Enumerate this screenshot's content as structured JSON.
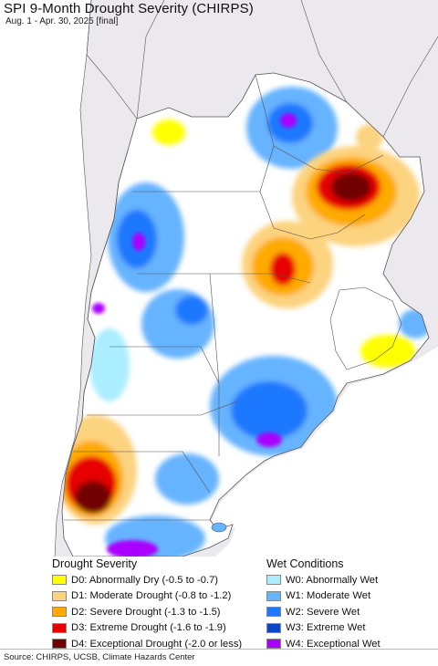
{
  "header": {
    "title": "SPI 9-Month Drought Severity (CHIRPS)",
    "subtitle": "Aug. 1 - Apr. 30, 2025 [final]"
  },
  "legend": {
    "drought_heading": "Drought Severity",
    "wet_heading": "Wet Conditions",
    "drought_items": [
      {
        "label": "D0: Abnormally Dry (-0.5 to -0.7)",
        "color": "#ffff00"
      },
      {
        "label": "D1: Moderate Drought (-0.8 to -1.2)",
        "color": "#fcd37f"
      },
      {
        "label": "D2: Severe Drought (-1.3 to -1.5)",
        "color": "#ffaa00"
      },
      {
        "label": "D3: Extreme Drought (-1.6 to -1.9)",
        "color": "#e60000"
      },
      {
        "label": "D4: Exceptional Drought (-2.0 or less)",
        "color": "#730000"
      }
    ],
    "wet_items": [
      {
        "label": "W0: Abnormally Wet",
        "color": "#aaeeff"
      },
      {
        "label": "W1: Moderate Wet",
        "color": "#66b3ff"
      },
      {
        "label": "W2: Severe Wet",
        "color": "#1e78ff"
      },
      {
        "label": "W3: Extreme Wet",
        "color": "#0a46c8"
      },
      {
        "label": "W4: Exceptional Wet",
        "color": "#aa00ff"
      }
    ]
  },
  "footer": {
    "source": "Source: CHIRPS, UCSB, Climate Hazards Center"
  },
  "map_colors": {
    "outside_land": "#ece9ee",
    "ocean": "#ffffff",
    "border": "#555555"
  }
}
